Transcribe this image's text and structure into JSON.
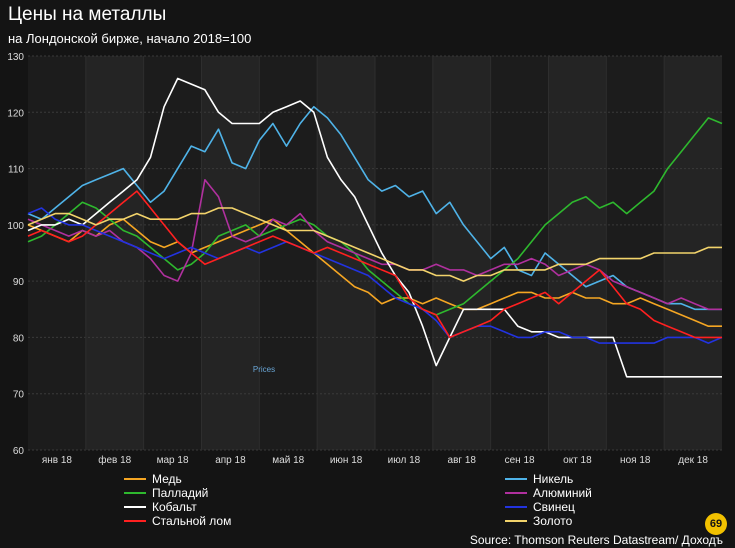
{
  "header": {
    "title": "Цены на металлы",
    "subtitle": "на Лондонской бирже, начало 2018=100"
  },
  "source": "Source: Thomson Reuters Datastream/ Доходъ",
  "logo_text": "69",
  "chart_data": {
    "type": "line",
    "title": "Цены на металлы",
    "subtitle": "на Лондонской бирже, начало 2018=100",
    "watermark": "Prices",
    "x_unit": "week_of_2018",
    "xlim": [
      0,
      51
    ],
    "ylim": [
      60,
      130
    ],
    "yticks": [
      60,
      70,
      80,
      90,
      100,
      110,
      120,
      130
    ],
    "months": [
      "янв 18",
      "фев 18",
      "мар 18",
      "апр 18",
      "май 18",
      "июн 18",
      "июл 18",
      "авг 18",
      "сен 18",
      "окт 18",
      "ноя 18",
      "дек 18"
    ],
    "grid": true,
    "legend_position": "bottom",
    "series": [
      {
        "name": "Медь",
        "color": "#f5a623",
        "values": [
          100,
          99,
          98,
          97,
          99,
          98,
          100,
          101,
          99,
          97,
          96,
          97,
          95,
          96,
          97,
          98,
          99,
          100,
          101,
          99,
          97,
          95,
          93,
          91,
          89,
          88,
          86,
          87,
          87,
          86,
          87,
          86,
          85,
          85,
          86,
          87,
          88,
          88,
          87,
          87,
          88,
          87,
          87,
          86,
          86,
          87,
          86,
          85,
          84,
          83,
          82,
          82
        ]
      },
      {
        "name": "Никель",
        "color": "#4fb3e8",
        "values": [
          102,
          101,
          103,
          105,
          107,
          108,
          109,
          110,
          107,
          104,
          106,
          110,
          114,
          113,
          117,
          111,
          110,
          115,
          118,
          114,
          118,
          121,
          119,
          116,
          112,
          108,
          106,
          107,
          105,
          106,
          102,
          104,
          100,
          97,
          94,
          96,
          92,
          91,
          95,
          93,
          91,
          89,
          90,
          91,
          89,
          88,
          87,
          86,
          86,
          85,
          85,
          85
        ]
      },
      {
        "name": "Палладий",
        "color": "#2eb82e",
        "values": [
          97,
          98,
          100,
          102,
          104,
          103,
          101,
          99,
          98,
          96,
          94,
          92,
          93,
          95,
          98,
          99,
          100,
          98,
          99,
          100,
          101,
          100,
          98,
          97,
          95,
          92,
          90,
          88,
          86,
          85,
          84,
          85,
          86,
          88,
          90,
          92,
          94,
          97,
          100,
          102,
          104,
          105,
          103,
          104,
          102,
          104,
          106,
          110,
          113,
          116,
          119,
          118
        ]
      },
      {
        "name": "Алюминий",
        "color": "#b0309e",
        "values": [
          101,
          100,
          99,
          98,
          99,
          98,
          99,
          97,
          96,
          94,
          91,
          90,
          95,
          108,
          105,
          98,
          97,
          98,
          101,
          100,
          102,
          99,
          97,
          96,
          95,
          94,
          93,
          93,
          92,
          92,
          93,
          92,
          92,
          91,
          92,
          93,
          93,
          94,
          93,
          91,
          92,
          93,
          92,
          90,
          89,
          88,
          87,
          86,
          87,
          86,
          85,
          85
        ]
      },
      {
        "name": "Кобальт",
        "color": "#ffffff",
        "values": [
          99,
          100,
          100,
          101,
          100,
          102,
          104,
          106,
          108,
          112,
          121,
          126,
          125,
          124,
          120,
          118,
          118,
          118,
          120,
          121,
          122,
          120,
          112,
          108,
          105,
          100,
          95,
          91,
          88,
          82,
          75,
          80,
          85,
          85,
          85,
          85,
          82,
          81,
          81,
          80,
          80,
          80,
          80,
          80,
          73,
          73,
          73,
          73,
          73,
          73,
          73,
          73
        ]
      },
      {
        "name": "Свинец",
        "color": "#2233e0",
        "values": [
          102,
          103,
          101,
          100,
          100,
          99,
          98,
          97,
          96,
          95,
          94,
          95,
          96,
          95,
          94,
          95,
          96,
          95,
          96,
          97,
          96,
          95,
          94,
          93,
          92,
          91,
          89,
          87,
          86,
          85,
          83,
          80,
          81,
          82,
          82,
          81,
          80,
          80,
          81,
          81,
          80,
          80,
          79,
          79,
          79,
          79,
          79,
          80,
          80,
          80,
          79,
          80
        ]
      },
      {
        "name": "Стальной лом",
        "color": "#ff2020",
        "values": [
          98,
          99,
          98,
          97,
          98,
          100,
          102,
          104,
          106,
          103,
          100,
          97,
          95,
          93,
          94,
          95,
          96,
          97,
          98,
          97,
          96,
          95,
          96,
          95,
          94,
          93,
          92,
          91,
          87,
          85,
          84,
          80,
          81,
          82,
          83,
          85,
          86,
          87,
          88,
          86,
          88,
          90,
          92,
          89,
          86,
          85,
          83,
          82,
          81,
          80,
          80,
          80
        ]
      },
      {
        "name": "Золото",
        "color": "#f2d36b",
        "values": [
          100,
          101,
          102,
          102,
          101,
          100,
          101,
          101,
          102,
          101,
          101,
          101,
          102,
          102,
          103,
          103,
          102,
          101,
          100,
          99,
          99,
          99,
          98,
          97,
          96,
          95,
          94,
          93,
          92,
          92,
          91,
          91,
          90,
          91,
          91,
          92,
          92,
          92,
          92,
          93,
          93,
          93,
          94,
          94,
          94,
          94,
          95,
          95,
          95,
          95,
          96,
          96
        ]
      }
    ]
  }
}
